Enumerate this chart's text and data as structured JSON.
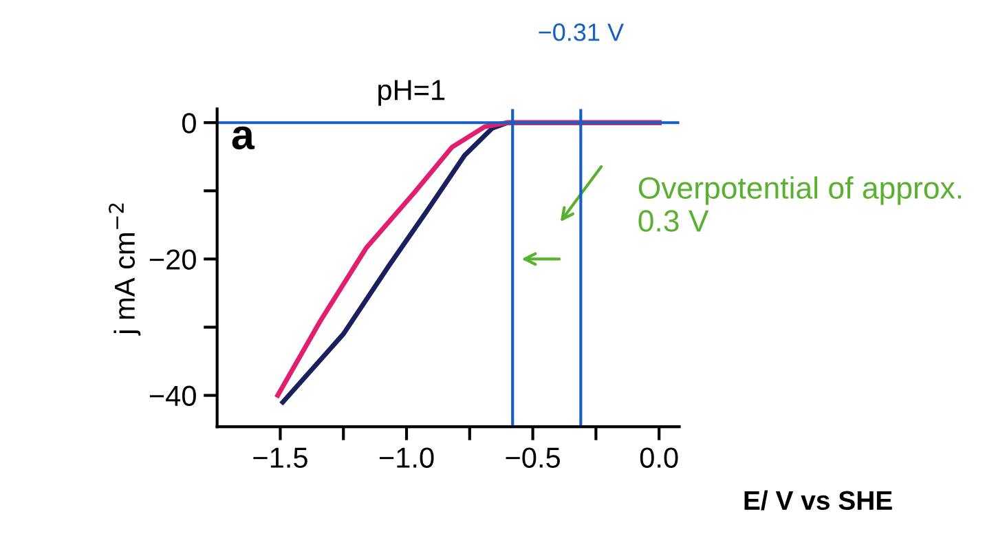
{
  "chart_data": {
    "type": "line",
    "xlabel": "E/ V vs SHE",
    "ylabel": "j mA cm$^{−2}$",
    "xlim": [
      -1.75,
      0.08
    ],
    "ylim": [
      -44.6,
      2
    ],
    "xticks": [
      {
        "value": -1.5,
        "label": "−1.5"
      },
      {
        "value": -1.25,
        "label": null
      },
      {
        "value": -1.0,
        "label": "−1.0"
      },
      {
        "value": -0.75,
        "label": null
      },
      {
        "value": -0.5,
        "label": "−0.5"
      },
      {
        "value": -0.25,
        "label": null
      },
      {
        "value": 0.0,
        "label": "0.0"
      }
    ],
    "yticks": [
      {
        "value": -40,
        "label": "−40"
      },
      {
        "value": -30,
        "label": null
      },
      {
        "value": -20,
        "label": "−20"
      },
      {
        "value": -10,
        "label": null
      },
      0
    ],
    "grid": false,
    "legend": false,
    "marker": "none",
    "line_style": "solid",
    "series": [
      {
        "color": "#1a1f5e",
        "x": [
          -1.49,
          -1.25,
          -1.07,
          -0.92,
          -0.77,
          -0.66,
          -0.6,
          -0.3,
          0.0
        ],
        "values": [
          -41.0,
          -31,
          -21,
          -13,
          -4.8,
          -0.8,
          0,
          0,
          0
        ]
      },
      {
        "color": "#e0206e",
        "x": [
          -1.51,
          -1.34,
          -1.16,
          -0.97,
          -0.82,
          -0.69,
          -0.6,
          -0.3,
          0.0
        ],
        "values": [
          -40,
          -29,
          -18.4,
          -10.3,
          -3.6,
          -0.6,
          0,
          0,
          0
        ]
      }
    ],
    "ref_lines": [
      {
        "axis": "y",
        "value": 0,
        "color": "#1560c0"
      },
      {
        "axis": "x",
        "value": -0.58,
        "color": "#1560c0"
      },
      {
        "axis": "x",
        "value": -0.31,
        "label": "−0.31 V",
        "color": "#1560c0"
      }
    ],
    "annotations": [
      "pH=1",
      "a",
      "Overpotential of approx. 0.3 V"
    ]
  }
}
